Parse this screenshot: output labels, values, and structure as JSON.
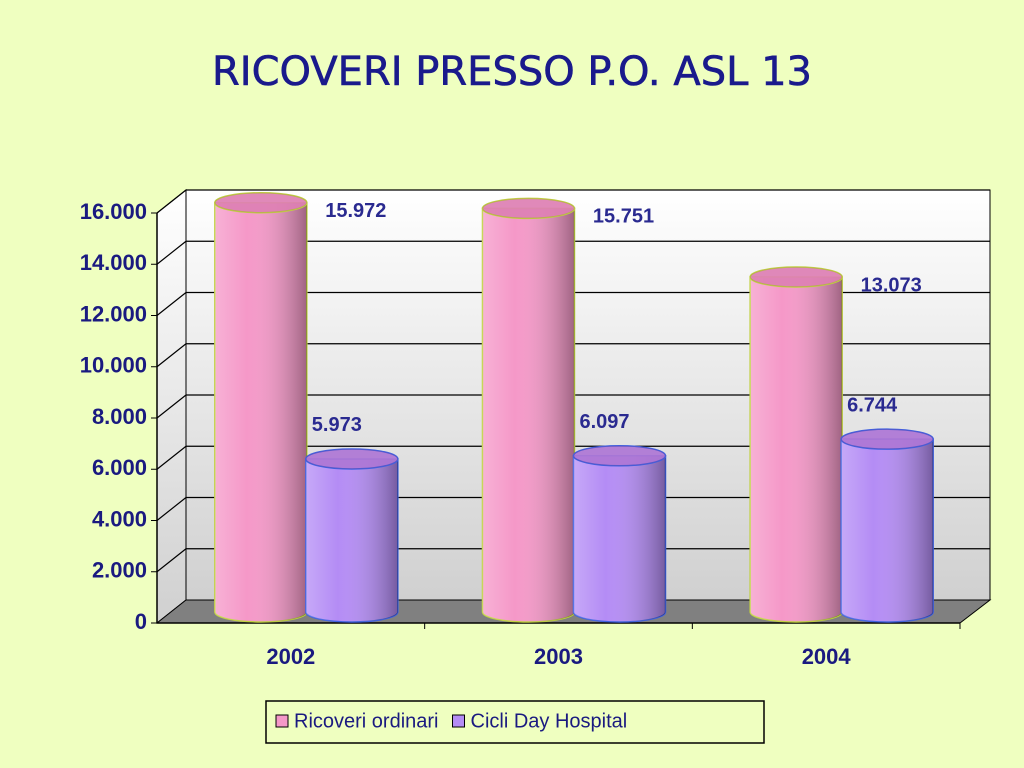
{
  "chart_data": {
    "type": "bar3d_cylinder",
    "title": "RICOVERI PRESSO P.O. ASL 13",
    "categories": [
      "2002",
      "2003",
      "2004"
    ],
    "series": [
      {
        "name": "Ricoveri ordinari",
        "color": "#f598c8",
        "values": [
          15972,
          15751,
          13073
        ],
        "value_labels": [
          "15.972",
          "15.751",
          "13.073"
        ]
      },
      {
        "name": "Cicli Day Hospital",
        "color": "#b48cf5",
        "values": [
          5973,
          6097,
          6744
        ],
        "value_labels": [
          "5.973",
          "6.097",
          "6.744"
        ]
      }
    ],
    "ylim": [
      0,
      16000
    ],
    "yticks": [
      0,
      {
        "value": 2000,
        "label": "2.000"
      },
      {
        "value": 4000,
        "label": "4.000"
      },
      {
        "value": 6000,
        "label": "6.000"
      },
      {
        "value": 8000,
        "label": "8.000"
      },
      {
        "value": 10000,
        "label": "10.000"
      },
      {
        "value": 12000,
        "label": "12.000"
      },
      {
        "value": 14000,
        "label": "14.000"
      },
      {
        "value": 16000,
        "label": "16.000"
      }
    ],
    "grid": true,
    "legend": "bottom"
  }
}
